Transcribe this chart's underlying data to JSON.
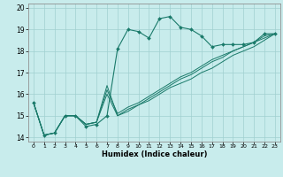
{
  "xlabel": "Humidex (Indice chaleur)",
  "background_color": "#c8ecec",
  "grid_color": "#a0d0d0",
  "line_color": "#1a7a6a",
  "xlim": [
    -0.5,
    23.5
  ],
  "ylim": [
    13.8,
    20.2
  ],
  "xticks": [
    0,
    1,
    2,
    3,
    4,
    5,
    6,
    7,
    8,
    9,
    10,
    11,
    12,
    13,
    14,
    15,
    16,
    17,
    18,
    19,
    20,
    21,
    22,
    23
  ],
  "yticks": [
    14,
    15,
    16,
    17,
    18,
    19,
    20
  ],
  "series": [
    [
      15.6,
      14.1,
      14.2,
      15.0,
      15.0,
      14.5,
      14.6,
      15.0,
      18.1,
      19.0,
      18.9,
      18.6,
      19.5,
      19.6,
      19.1,
      19.0,
      18.7,
      18.2,
      18.3,
      18.3,
      18.3,
      18.4,
      18.8,
      18.8
    ],
    [
      15.6,
      14.1,
      14.2,
      15.0,
      15.0,
      14.6,
      14.7,
      16.4,
      15.0,
      15.3,
      15.5,
      15.7,
      16.0,
      16.3,
      16.5,
      16.7,
      17.0,
      17.2,
      17.5,
      17.8,
      18.0,
      18.2,
      18.5,
      18.8
    ],
    [
      15.6,
      14.1,
      14.2,
      15.0,
      15.0,
      14.6,
      14.7,
      16.2,
      15.1,
      15.4,
      15.6,
      15.9,
      16.2,
      16.5,
      16.8,
      17.0,
      17.3,
      17.6,
      17.8,
      18.0,
      18.2,
      18.4,
      18.6,
      18.8
    ],
    [
      15.6,
      14.1,
      14.2,
      15.0,
      15.0,
      14.6,
      14.7,
      16.0,
      15.0,
      15.2,
      15.5,
      15.8,
      16.1,
      16.4,
      16.7,
      16.9,
      17.2,
      17.5,
      17.7,
      18.0,
      18.2,
      18.4,
      18.7,
      18.8
    ]
  ]
}
